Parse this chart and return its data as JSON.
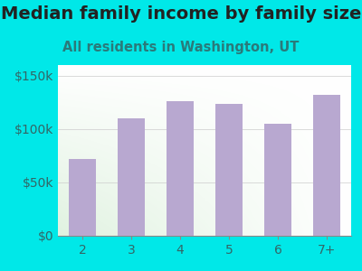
{
  "title": "Median family income by family size",
  "subtitle": "All residents in Washington, UT",
  "categories": [
    "2",
    "3",
    "4",
    "5",
    "6",
    "7+"
  ],
  "values": [
    72000,
    110000,
    126000,
    124000,
    105000,
    132000
  ],
  "bar_color": "#b8a8d0",
  "background_outer": "#00e8e8",
  "title_color": "#222222",
  "subtitle_color": "#2a7a7a",
  "tick_color": "#336666",
  "ylim": [
    0,
    160000
  ],
  "yticks": [
    0,
    50000,
    100000,
    150000
  ],
  "title_fontsize": 14,
  "subtitle_fontsize": 10.5
}
